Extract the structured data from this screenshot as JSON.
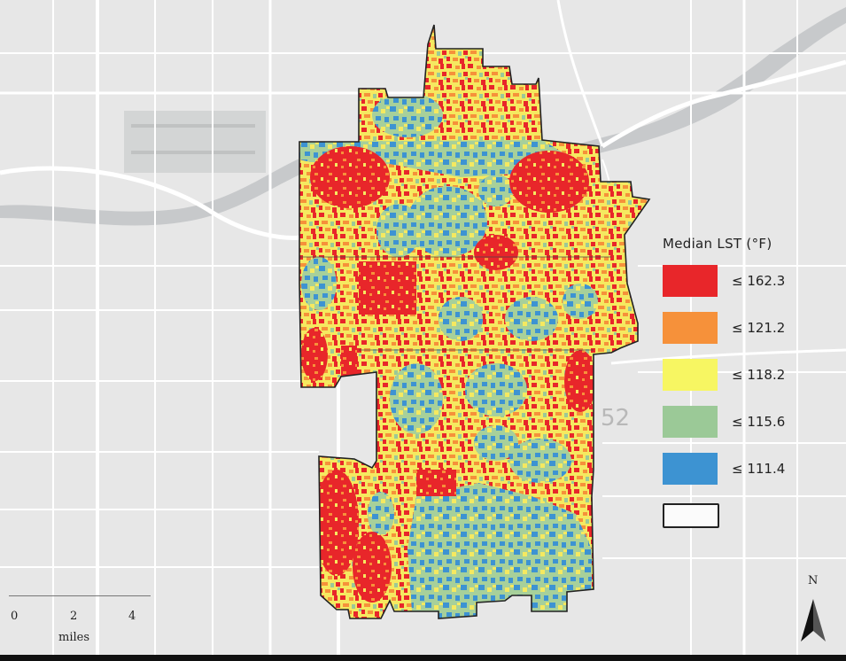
{
  "legend": {
    "title": "Median LST (°F)",
    "items": [
      {
        "label": "≤ 162.3",
        "color": "#e8262a"
      },
      {
        "label": "≤ 121.2",
        "color": "#f6913a"
      },
      {
        "label": "≤ 118.2",
        "color": "#f7f662"
      },
      {
        "label": "≤ 115.6",
        "color": "#9bc997"
      },
      {
        "label": "≤ 111.4",
        "color": "#3d93d2"
      }
    ],
    "boundary_color": "#222222"
  },
  "scale_bar": {
    "ticks": [
      "0",
      "2",
      "4"
    ],
    "units": "miles"
  },
  "north_arrow": {
    "label": "N"
  },
  "basemap": {
    "highway_label": "52",
    "background_color": "#e7e7e7",
    "road_color": "#ffffff",
    "water_color": "#c6c9cb"
  }
}
